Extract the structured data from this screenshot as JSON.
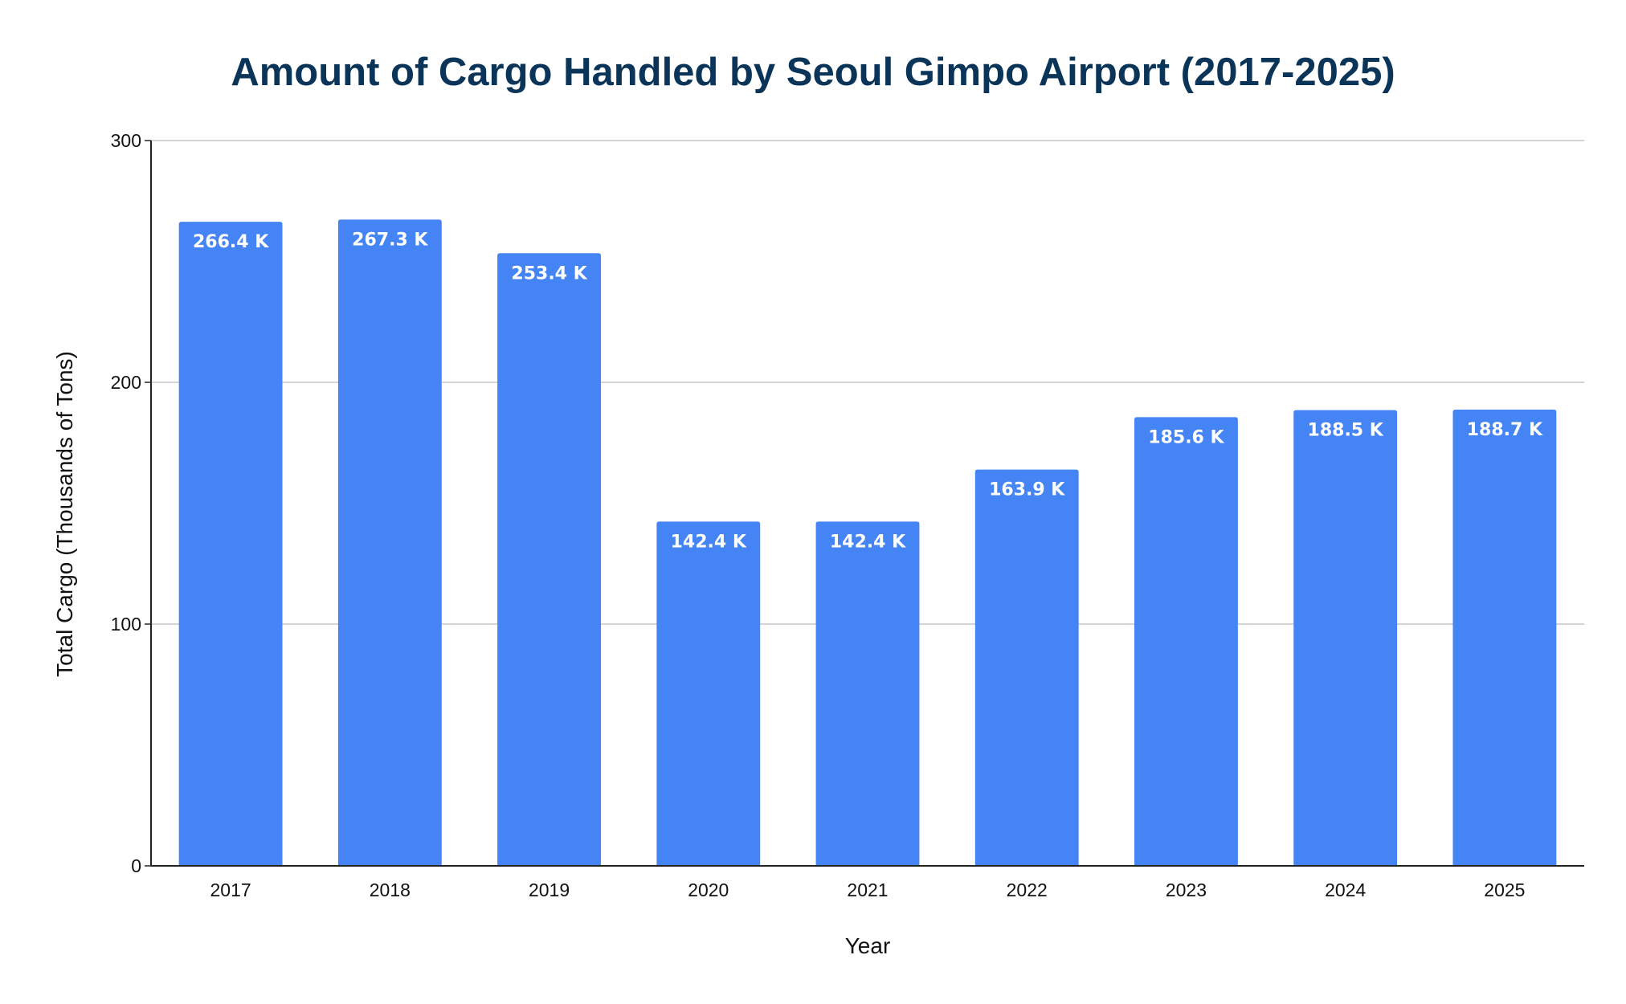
{
  "chart_data": {
    "type": "bar",
    "title": "Amount of Cargo Handled by Seoul Gimpo Airport (2017-2025)",
    "xlabel": "Year",
    "ylabel": "Total Cargo (Thousands of Tons)",
    "categories": [
      "2017",
      "2018",
      "2019",
      "2020",
      "2021",
      "2022",
      "2023",
      "2024",
      "2025"
    ],
    "values": [
      266.4,
      267.3,
      253.4,
      142.4,
      142.4,
      163.9,
      185.6,
      188.5,
      188.7
    ],
    "data_labels": [
      "266.4 K",
      "267.3 K",
      "253.4 K",
      "142.4 K",
      "142.4 K",
      "163.9 K",
      "185.6 K",
      "188.5 K",
      "188.7 K"
    ],
    "ylim": [
      0,
      300
    ],
    "yticks": [
      "0",
      "100",
      "200",
      "300"
    ],
    "grid": true,
    "legend": "none",
    "bar_color": "#4484f4",
    "title_color": "#0b3558"
  }
}
